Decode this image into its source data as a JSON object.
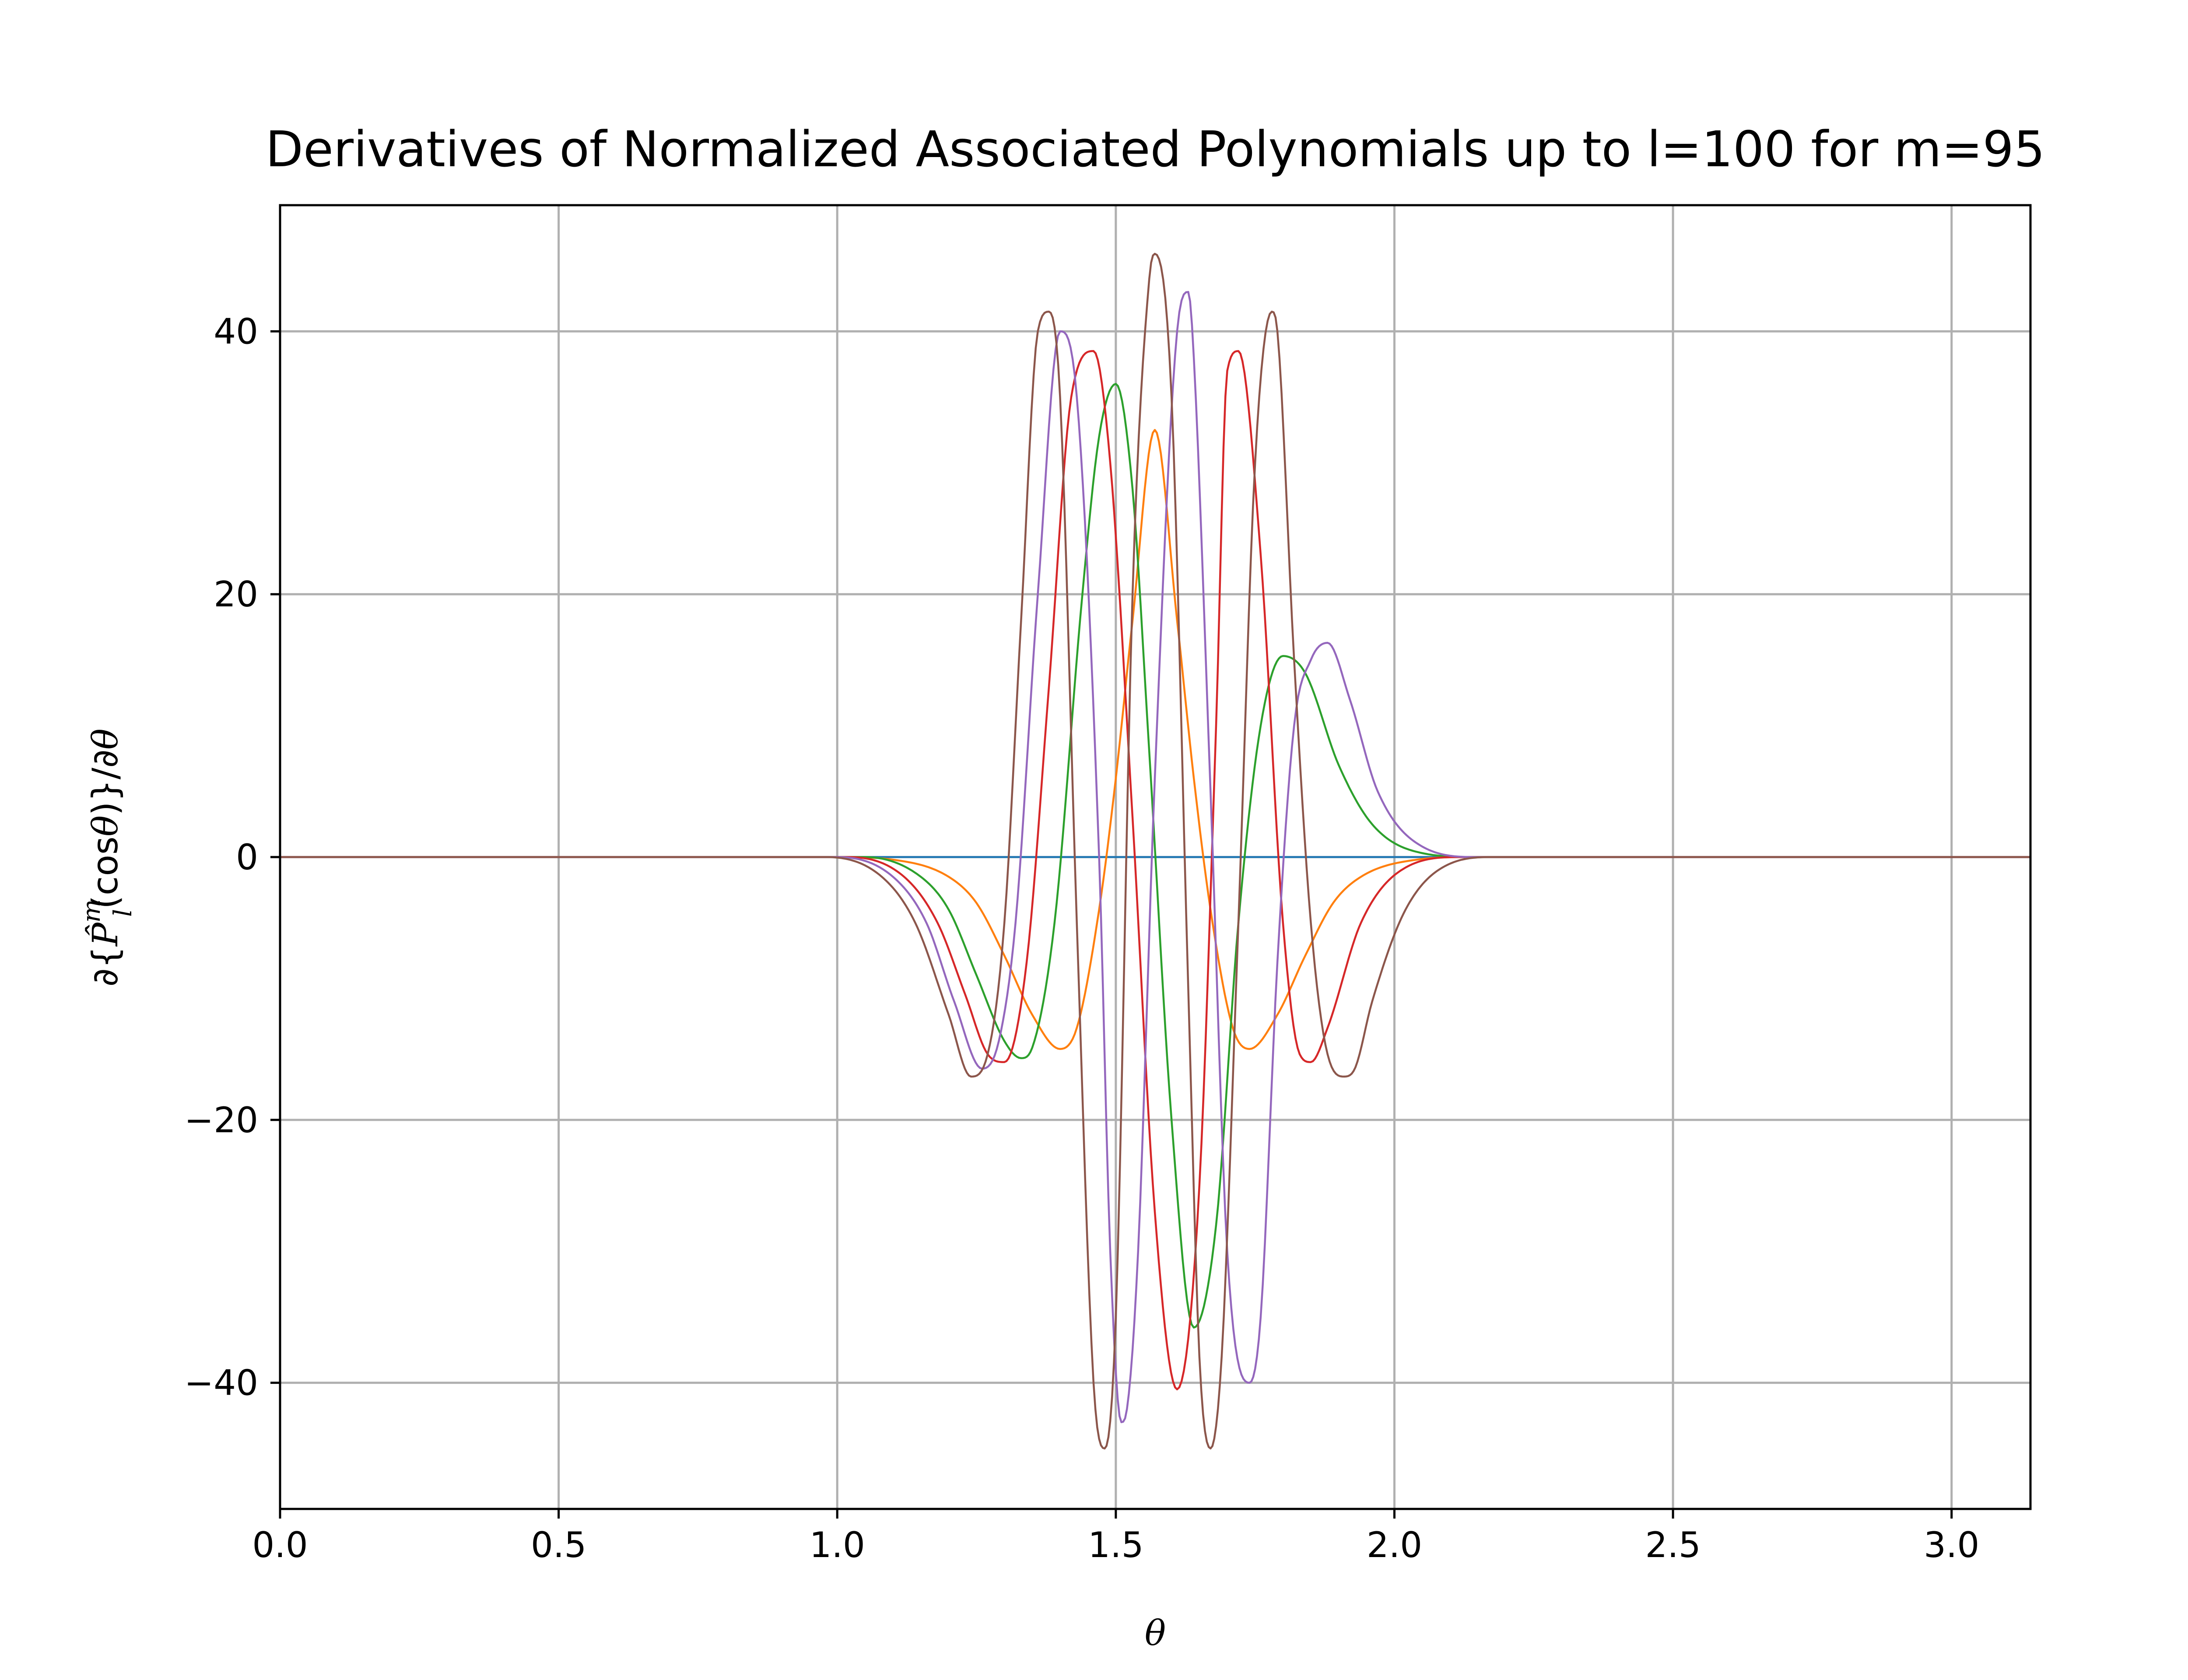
{
  "chart_data": {
    "type": "line",
    "title": "Derivatives of Normalized Associated Polynomials up to l=100 for m=95",
    "xlabel": "θ",
    "ylabel": "∂{P̂lm(cosθ)}/∂θ",
    "xlim": [
      0.0,
      3.14159
    ],
    "ylim": [
      -49.6,
      49.6
    ],
    "xticks": [
      0.0,
      0.5,
      1.0,
      1.5,
      2.0,
      2.5,
      3.0
    ],
    "xtick_labels": [
      "0.0",
      "0.5",
      "1.0",
      "1.5",
      "2.0",
      "2.5",
      "3.0"
    ],
    "yticks": [
      -40,
      -20,
      0,
      20,
      40
    ],
    "ytick_labels": [
      "−40",
      "−20",
      "0",
      "20",
      "40"
    ],
    "grid": true,
    "legend": "none",
    "series": [
      {
        "color": "#1f77b4",
        "x": [
          0.0,
          3.14159
        ],
        "y": [
          0,
          0
        ]
      },
      {
        "color": "#ff7f0e",
        "x": [
          0,
          1.0,
          1.1,
          1.2,
          1.25,
          1.3,
          1.35,
          1.4,
          1.43,
          1.47,
          1.5,
          1.53,
          1.57,
          1.61,
          1.64,
          1.67,
          1.71,
          1.74,
          1.79,
          1.84,
          1.89,
          1.94,
          2.04,
          2.14,
          3.14159
        ],
        "y": [
          0,
          0,
          -0.2,
          -1.5,
          -3.5,
          -7.5,
          -12,
          -14.6,
          -13,
          -4,
          6,
          18,
          32.5,
          18,
          6,
          -4,
          -13,
          -14.6,
          -12,
          -7.5,
          -3.5,
          -1.5,
          -0.2,
          0,
          0
        ]
      },
      {
        "color": "#2ca02c",
        "x": [
          0,
          1.05,
          1.15,
          1.2,
          1.25,
          1.3,
          1.33,
          1.35,
          1.39,
          1.44,
          1.47,
          1.5,
          1.53,
          1.56,
          1.6,
          1.64,
          1.68,
          1.72,
          1.76,
          1.8,
          1.84,
          1.9,
          1.96,
          2.05,
          2.15,
          3.14159
        ],
        "y": [
          0,
          0,
          -1.5,
          -4,
          -9,
          -14,
          -15.3,
          -14.5,
          -5,
          20,
          32,
          36,
          28,
          8,
          -20,
          -35.8,
          -28,
          -5,
          10,
          15.3,
          14,
          7,
          2.5,
          0.3,
          0,
          0
        ]
      },
      {
        "color": "#d62728",
        "x": [
          0,
          1.02,
          1.12,
          1.18,
          1.23,
          1.27,
          1.3,
          1.34,
          1.38,
          1.42,
          1.46,
          1.49,
          1.53,
          1.57,
          1.61,
          1.65,
          1.68,
          1.7,
          1.72,
          1.76,
          1.8,
          1.83,
          1.85,
          1.88,
          1.94,
          2.02,
          2.12,
          3.14159
        ],
        "y": [
          0,
          0,
          -1.5,
          -5,
          -10.5,
          -15,
          -15.6,
          -8,
          13,
          35,
          38.5,
          30,
          3,
          -27,
          -40.5,
          -25,
          10,
          37,
          38.5,
          23,
          -5,
          -15,
          -15.6,
          -13,
          -5,
          -0.8,
          0,
          0
        ]
      },
      {
        "color": "#9467bd",
        "x": [
          0,
          1.0,
          1.1,
          1.16,
          1.21,
          1.26,
          1.29,
          1.32,
          1.36,
          1.4,
          1.43,
          1.47,
          1.49,
          1.51,
          1.52,
          1.54,
          1.57,
          1.61,
          1.63,
          1.64,
          1.67,
          1.7,
          1.74,
          1.76,
          1.79,
          1.82,
          1.85,
          1.88,
          1.92,
          1.97,
          2.05,
          2.15,
          3.14159
        ],
        "y": [
          0,
          0,
          -1.5,
          -5,
          -11,
          -16.1,
          -14,
          -5,
          20,
          40,
          35,
          0,
          -30,
          -43,
          -42,
          -30,
          6,
          40,
          43,
          38,
          5,
          -30,
          -40,
          -35,
          -8,
          10,
          15,
          16.3,
          12,
          5,
          0.8,
          0,
          0
        ]
      },
      {
        "color": "#8c564b",
        "x": [
          0,
          0.98,
          1.08,
          1.14,
          1.2,
          1.24,
          1.27,
          1.3,
          1.33,
          1.36,
          1.38,
          1.4,
          1.43,
          1.46,
          1.48,
          1.5,
          1.53,
          1.56,
          1.57,
          1.6,
          1.63,
          1.65,
          1.67,
          1.69,
          1.72,
          1.75,
          1.78,
          1.79,
          1.82,
          1.85,
          1.88,
          1.91,
          1.93,
          1.96,
          2.02,
          2.1,
          2.18,
          3.14159
        ],
        "y": [
          0,
          0,
          -1.5,
          -5,
          -12,
          -16.7,
          -15,
          -5,
          18,
          40,
          41.5,
          35,
          -5,
          -40,
          -45,
          -35,
          20,
          44,
          45.9,
          35,
          -10,
          -38,
          -45,
          -38,
          -5,
          30,
          41.5,
          40,
          15,
          -5,
          -15,
          -16.7,
          -16,
          -11,
          -4,
          -0.5,
          0,
          0
        ]
      }
    ]
  }
}
